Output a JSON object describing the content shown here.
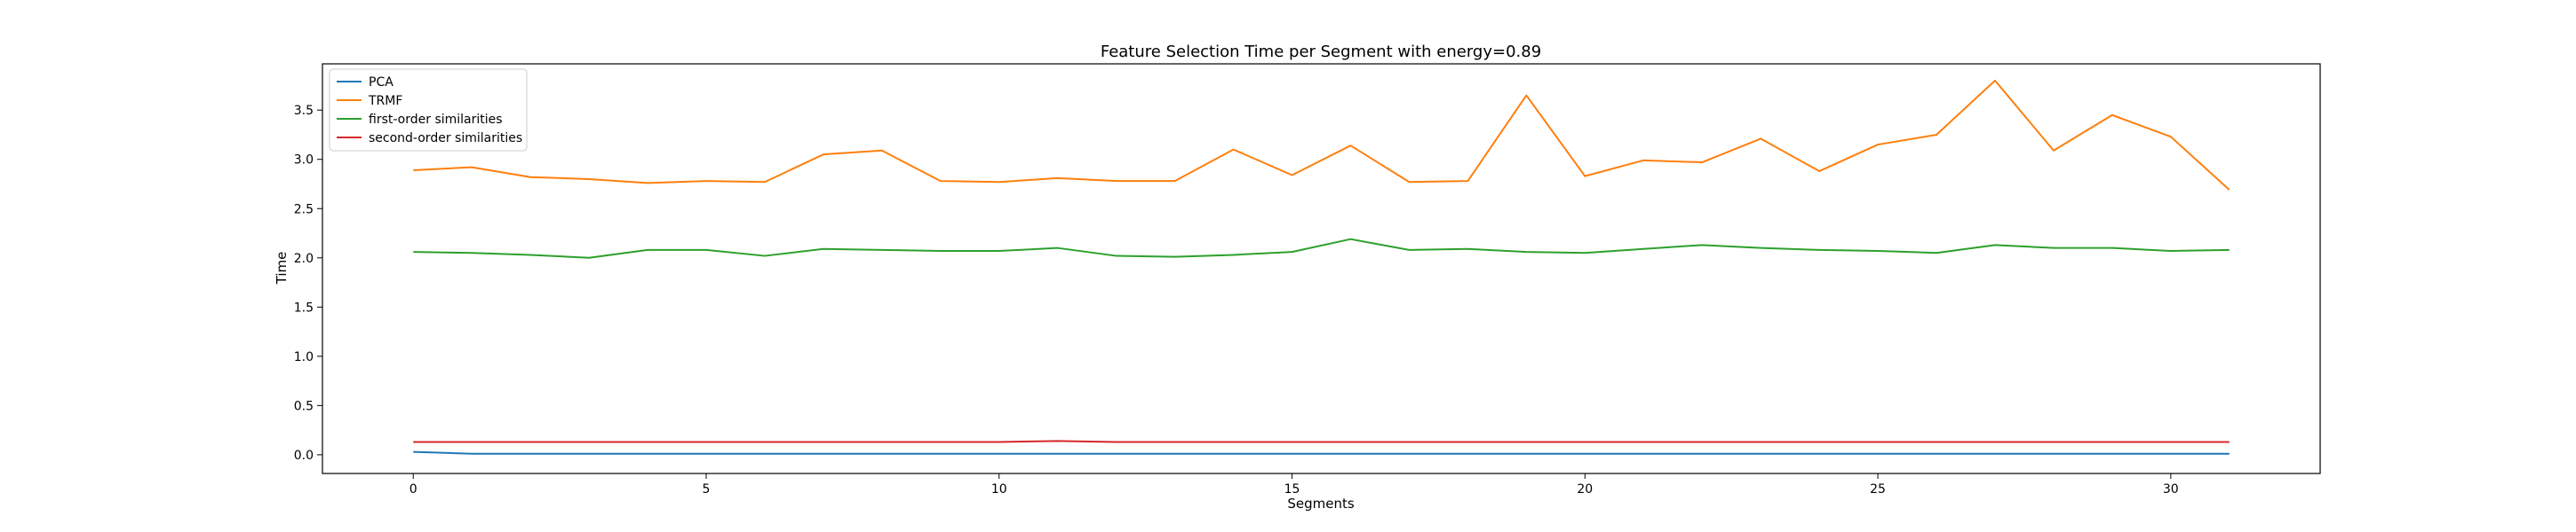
{
  "chart_data": {
    "type": "line",
    "title": "Feature Selection Time per Segment with energy=0.89",
    "xlabel": "Segments",
    "ylabel": "Time",
    "xlim": [
      -1.55,
      32.55
    ],
    "ylim": [
      -0.19,
      3.97
    ],
    "xticks": [
      0,
      5,
      10,
      15,
      20,
      25,
      30
    ],
    "yticks": [
      0.0,
      0.5,
      1.0,
      1.5,
      2.0,
      2.5,
      3.0,
      3.5
    ],
    "grid": false,
    "legend_position": "top-left",
    "x": [
      0,
      1,
      2,
      3,
      4,
      5,
      6,
      7,
      8,
      9,
      10,
      11,
      12,
      13,
      14,
      15,
      16,
      17,
      18,
      19,
      20,
      21,
      22,
      23,
      24,
      25,
      26,
      27,
      28,
      29,
      30,
      31
    ],
    "series": [
      {
        "name": "PCA",
        "color": "#1f77b4",
        "values": [
          0.03,
          0.01,
          0.01,
          0.01,
          0.01,
          0.01,
          0.01,
          0.01,
          0.01,
          0.01,
          0.01,
          0.01,
          0.01,
          0.01,
          0.01,
          0.01,
          0.01,
          0.01,
          0.01,
          0.01,
          0.01,
          0.01,
          0.01,
          0.01,
          0.01,
          0.01,
          0.01,
          0.01,
          0.01,
          0.01,
          0.01,
          0.01
        ]
      },
      {
        "name": "TRMF",
        "color": "#ff7f0e",
        "values": [
          2.89,
          2.92,
          2.82,
          2.8,
          2.76,
          2.78,
          2.77,
          3.05,
          3.09,
          2.78,
          2.77,
          2.81,
          2.78,
          2.78,
          3.1,
          2.84,
          3.14,
          2.77,
          2.78,
          3.65,
          2.83,
          2.99,
          2.97,
          3.21,
          2.88,
          3.15,
          3.25,
          3.8,
          3.09,
          3.45,
          3.23,
          2.69
        ]
      },
      {
        "name": "first-order similarities",
        "color": "#2ca02c",
        "values": [
          2.06,
          2.05,
          2.03,
          2.0,
          2.08,
          2.08,
          2.02,
          2.09,
          2.08,
          2.07,
          2.07,
          2.1,
          2.02,
          2.01,
          2.03,
          2.06,
          2.19,
          2.08,
          2.09,
          2.06,
          2.05,
          2.09,
          2.13,
          2.1,
          2.08,
          2.07,
          2.05,
          2.13,
          2.1,
          2.1,
          2.07,
          2.08
        ]
      },
      {
        "name": "second-order similarities",
        "color": "#d62728",
        "values": [
          0.13,
          0.13,
          0.13,
          0.13,
          0.13,
          0.13,
          0.13,
          0.13,
          0.13,
          0.13,
          0.13,
          0.14,
          0.13,
          0.13,
          0.13,
          0.13,
          0.13,
          0.13,
          0.13,
          0.13,
          0.13,
          0.13,
          0.13,
          0.13,
          0.13,
          0.13,
          0.13,
          0.13,
          0.13,
          0.13,
          0.13,
          0.13
        ]
      }
    ]
  }
}
